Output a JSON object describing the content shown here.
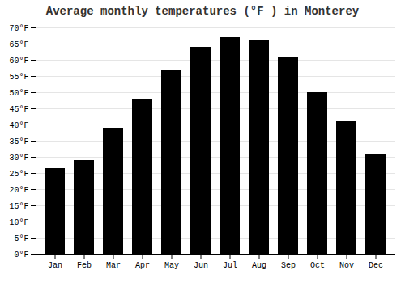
{
  "chart_data": {
    "type": "bar",
    "title": "Average monthly temperatures (°F ) in Monterey",
    "categories": [
      "Jan",
      "Feb",
      "Mar",
      "Apr",
      "May",
      "Jun",
      "Jul",
      "Aug",
      "Sep",
      "Oct",
      "Nov",
      "Dec"
    ],
    "values": [
      26.5,
      29.0,
      39.0,
      48.0,
      57.0,
      64.0,
      67.0,
      66.0,
      61.0,
      50.0,
      41.0,
      31.0
    ],
    "ylim": [
      0,
      70
    ],
    "yticks": [
      {
        "value": 0,
        "label": "0°F"
      },
      {
        "value": 5,
        "label": "5°F"
      },
      {
        "value": 10,
        "label": "10°F"
      },
      {
        "value": 15,
        "label": "15°F"
      },
      {
        "value": 20,
        "label": "20°F"
      },
      {
        "value": 25,
        "label": "25°F"
      },
      {
        "value": 30,
        "label": "30°F"
      },
      {
        "value": 35,
        "label": "35°F"
      },
      {
        "value": 40,
        "label": "40°F"
      },
      {
        "value": 45,
        "label": "45°F"
      },
      {
        "value": 50,
        "label": "50°F"
      },
      {
        "value": 55,
        "label": "55°F"
      },
      {
        "value": 60,
        "label": "60°F"
      },
      {
        "value": 65,
        "label": "65°F"
      },
      {
        "value": 70,
        "label": "70°F"
      }
    ],
    "grid": true
  }
}
